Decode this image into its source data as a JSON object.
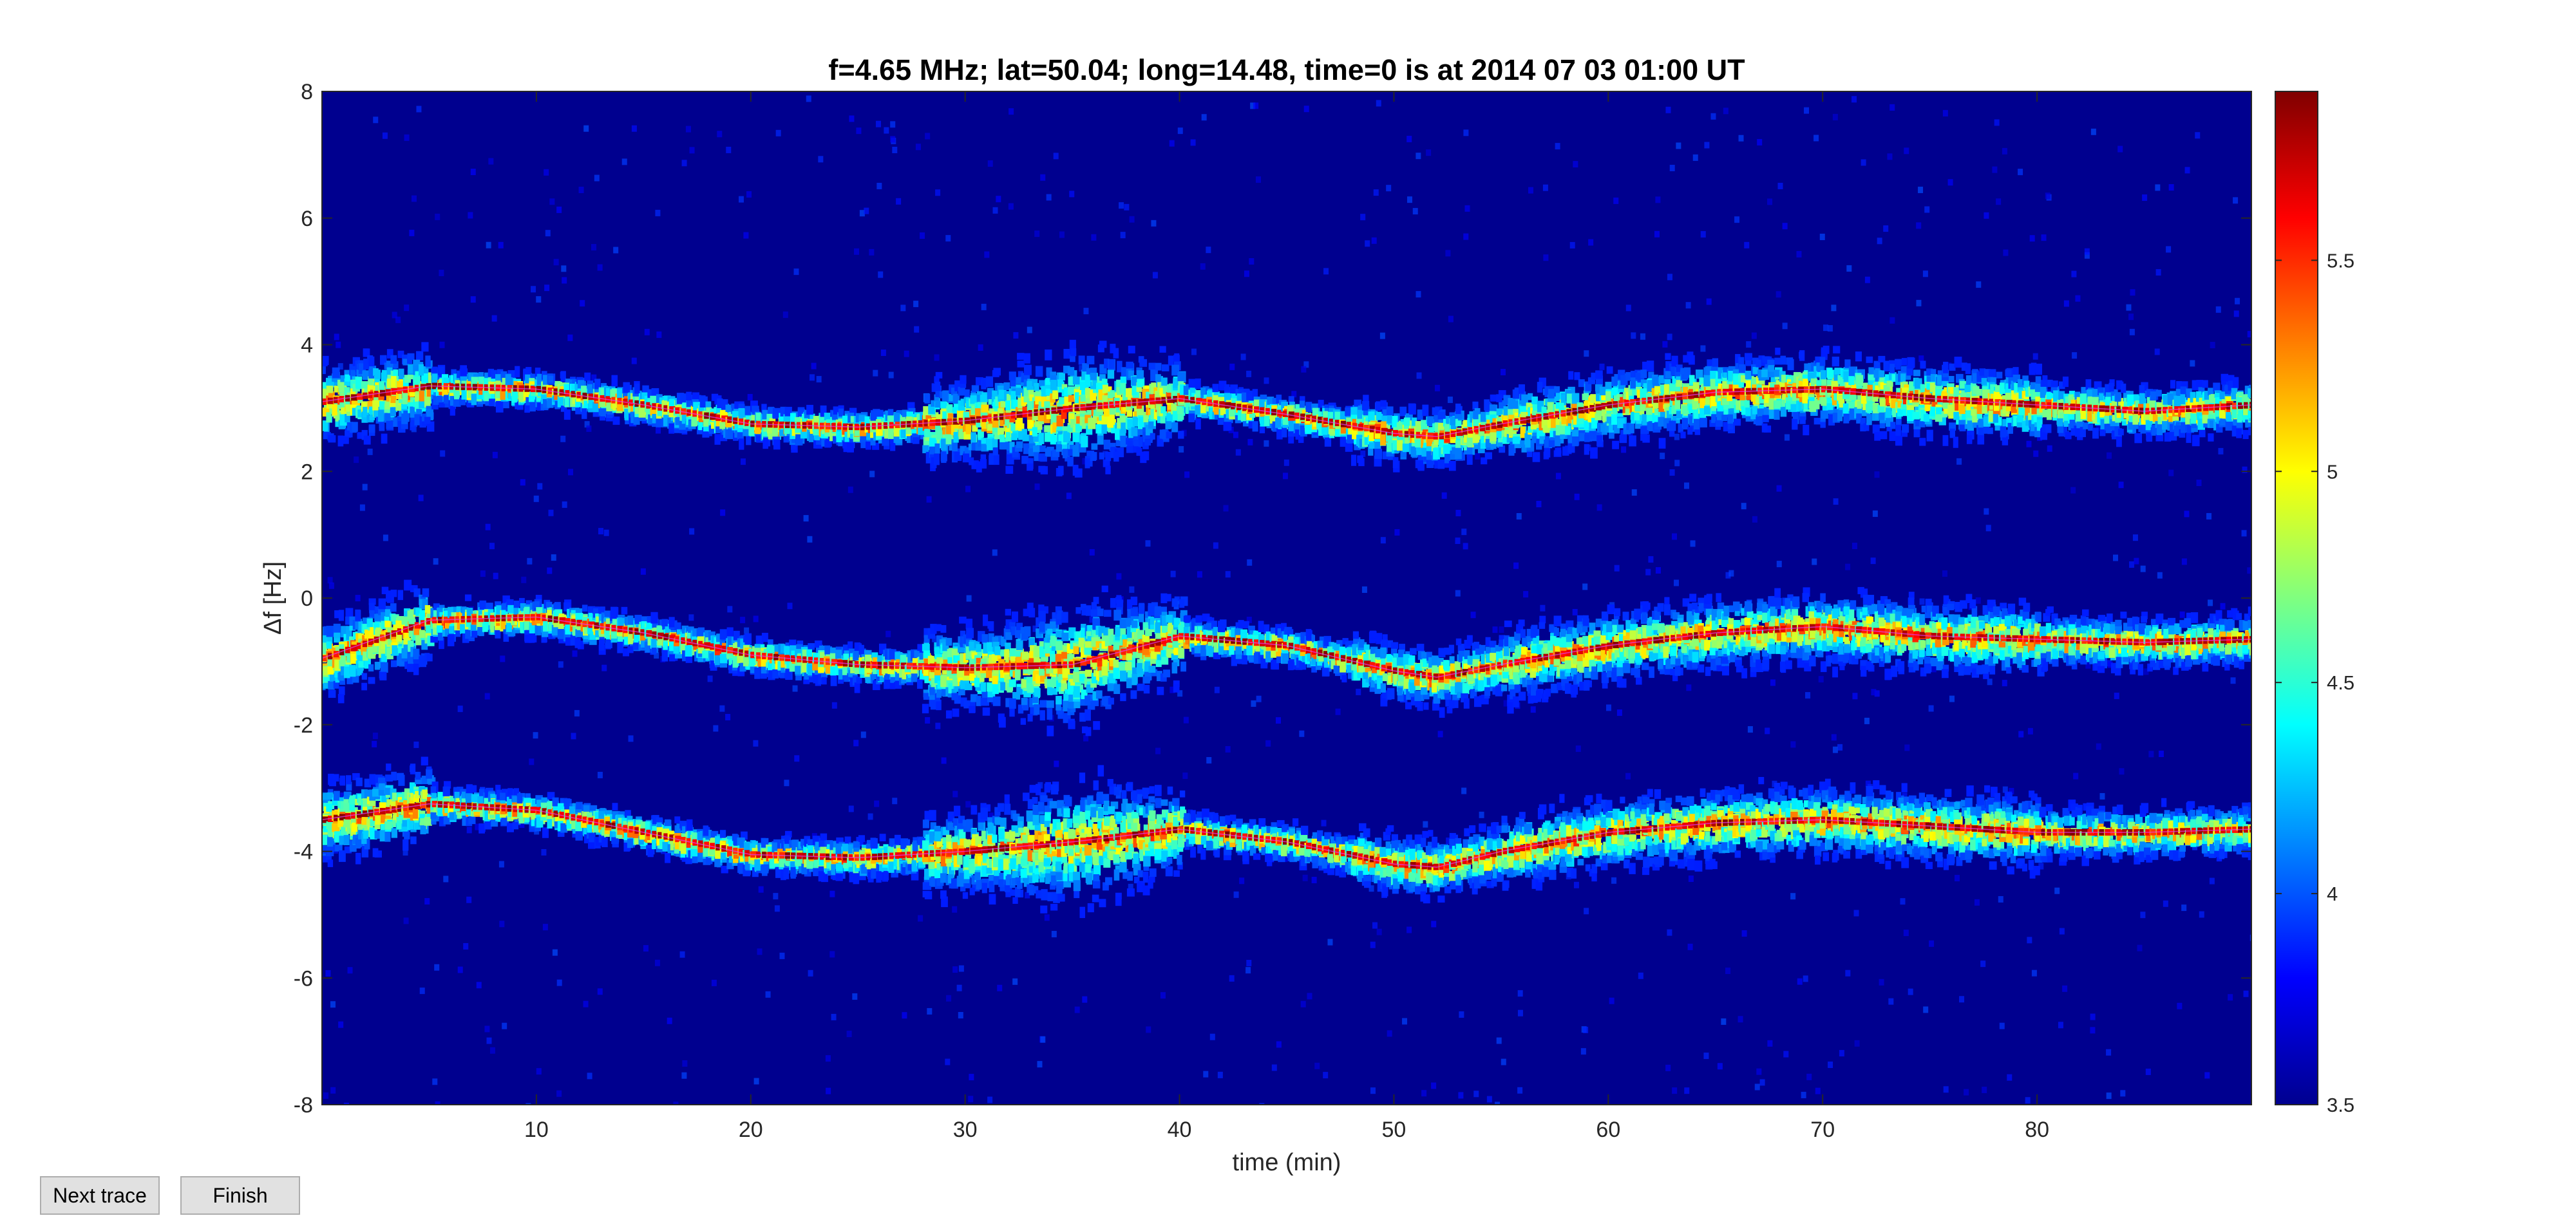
{
  "buttons": {
    "next_trace": "Next trace",
    "finish": "Finish"
  },
  "chart_data": {
    "type": "heatmap",
    "title": "f=4.65 MHz;  lat=50.04; long=14.48, time=0 is at 2014 07 03 01:00 UT",
    "xlabel": "time (min)",
    "ylabel": "Δf [Hz]",
    "xlim": [
      0,
      90
    ],
    "ylim": [
      -8,
      8
    ],
    "xticks": [
      10,
      20,
      30,
      40,
      50,
      60,
      70,
      80
    ],
    "yticks": [
      8,
      6,
      4,
      2,
      0,
      -2,
      -4,
      -6,
      -8
    ],
    "colorbar": {
      "colormap": "jet",
      "clim": [
        3.5,
        5.9
      ],
      "ticks": [
        "5.5",
        "5",
        "4.5",
        "4",
        "3.5"
      ]
    },
    "background_color": "#00008f",
    "traces": [
      {
        "x": [
          0,
          5,
          10,
          15,
          20,
          25,
          30,
          35,
          40,
          45,
          50,
          52,
          55,
          60,
          65,
          70,
          75,
          80,
          85,
          90
        ],
        "y": [
          3.1,
          3.35,
          3.3,
          3.05,
          2.75,
          2.7,
          2.8,
          3.0,
          3.15,
          2.9,
          2.6,
          2.55,
          2.75,
          3.05,
          3.25,
          3.3,
          3.15,
          3.05,
          2.95,
          3.05
        ]
      },
      {
        "x": [
          0,
          5,
          10,
          15,
          20,
          25,
          30,
          35,
          40,
          45,
          50,
          52,
          55,
          60,
          65,
          70,
          75,
          80,
          85,
          90
        ],
        "y": [
          -0.95,
          -0.35,
          -0.3,
          -0.55,
          -0.9,
          -1.05,
          -1.1,
          -1.05,
          -0.6,
          -0.75,
          -1.15,
          -1.25,
          -1.05,
          -0.75,
          -0.55,
          -0.45,
          -0.6,
          -0.65,
          -0.7,
          -0.65
        ]
      },
      {
        "x": [
          0,
          5,
          10,
          15,
          20,
          25,
          30,
          35,
          40,
          45,
          50,
          52,
          55,
          60,
          65,
          70,
          75,
          80,
          85,
          90
        ],
        "y": [
          -3.5,
          -3.25,
          -3.35,
          -3.7,
          -4.05,
          -4.1,
          -4.0,
          -3.85,
          -3.65,
          -3.85,
          -4.2,
          -4.25,
          -4.0,
          -3.7,
          -3.55,
          -3.5,
          -3.6,
          -3.7,
          -3.7,
          -3.65
        ]
      }
    ]
  }
}
